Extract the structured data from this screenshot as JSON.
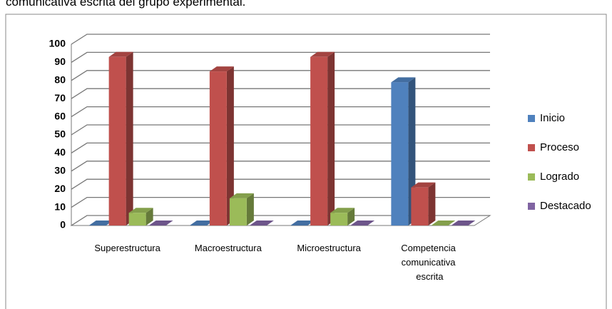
{
  "chart_data": {
    "type": "bar3d",
    "caption": "comunicativa escrita del grupo experimental.",
    "categories": [
      "Superestructura",
      "Macroestructura",
      "Microestructura",
      "Competencia comunicativa escrita"
    ],
    "series": [
      {
        "name": "Inicio",
        "color": "#4f81bd",
        "values": [
          0,
          0,
          0,
          79
        ]
      },
      {
        "name": "Proceso",
        "color": "#c0504d",
        "values": [
          93,
          85,
          93,
          21
        ]
      },
      {
        "name": "Logrado",
        "color": "#9bbb59",
        "values": [
          7,
          15,
          7,
          0
        ]
      },
      {
        "name": "Destacado",
        "color": "#8064a2",
        "values": [
          0,
          0,
          0,
          0
        ]
      }
    ],
    "ylim": [
      0,
      100
    ],
    "yticks": [
      0,
      10,
      20,
      30,
      40,
      50,
      60,
      70,
      80,
      90,
      100
    ],
    "grid": true,
    "legend": "right"
  }
}
